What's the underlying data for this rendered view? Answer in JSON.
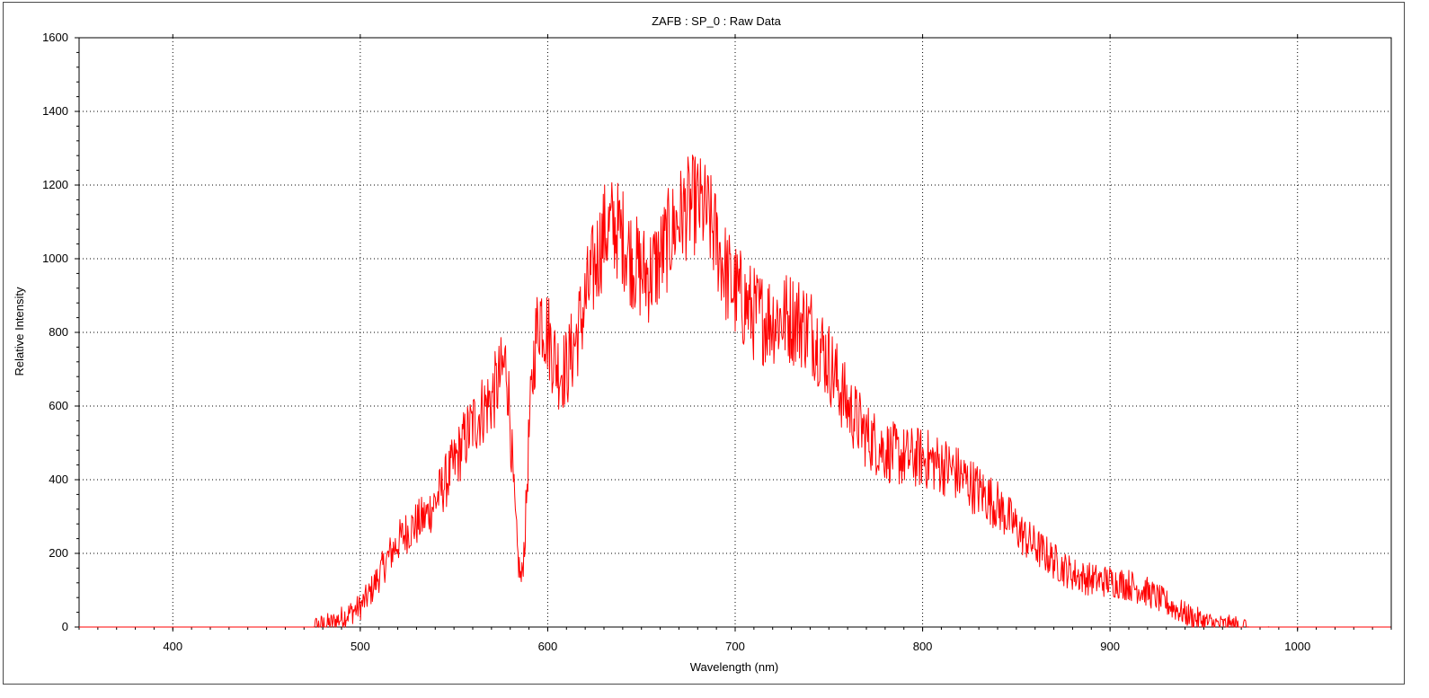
{
  "chart_data": {
    "type": "line",
    "title": "ZAFB : SP_0 : Raw Data",
    "xlabel": "Wavelength (nm)",
    "ylabel": "Relative Intensity",
    "xlim": [
      350,
      1050
    ],
    "ylim": [
      0,
      1600
    ],
    "x_ticks": [
      400,
      500,
      600,
      700,
      800,
      900,
      1000
    ],
    "y_ticks": [
      0,
      200,
      400,
      600,
      800,
      1000,
      1200,
      1400,
      1600
    ],
    "grid": true,
    "grid_style": "dotted",
    "legend": "none",
    "series": [
      {
        "color": "#ff0000",
        "x": [
          350,
          400,
          450,
          475,
          480,
          485,
          490,
          495,
          500,
          505,
          510,
          515,
          520,
          525,
          530,
          535,
          540,
          545,
          550,
          555,
          560,
          565,
          570,
          575,
          578,
          580,
          582,
          584,
          586,
          588,
          590,
          593,
          596,
          600,
          603,
          606,
          610,
          615,
          620,
          625,
          630,
          635,
          640,
          645,
          650,
          655,
          660,
          665,
          670,
          675,
          680,
          685,
          690,
          695,
          700,
          705,
          710,
          715,
          720,
          725,
          730,
          735,
          740,
          745,
          750,
          755,
          760,
          765,
          770,
          775,
          780,
          785,
          790,
          795,
          800,
          805,
          810,
          815,
          820,
          825,
          830,
          835,
          840,
          845,
          850,
          855,
          860,
          865,
          870,
          875,
          880,
          885,
          890,
          895,
          900,
          905,
          910,
          915,
          920,
          925,
          930,
          935,
          940,
          945,
          950,
          955,
          960,
          965,
          970,
          975,
          980,
          985,
          990,
          1000,
          1050
        ],
        "y": [
          0,
          0,
          0,
          0,
          5,
          10,
          25,
          40,
          55,
          90,
          140,
          190,
          230,
          260,
          280,
          300,
          340,
          390,
          440,
          500,
          550,
          590,
          620,
          680,
          720,
          560,
          350,
          190,
          120,
          260,
          520,
          760,
          860,
          800,
          740,
          700,
          700,
          780,
          880,
          980,
          1070,
          1090,
          1060,
          1000,
          960,
          960,
          1000,
          1060,
          1110,
          1140,
          1150,
          1120,
          1050,
          960,
          910,
          880,
          850,
          840,
          840,
          840,
          840,
          830,
          810,
          770,
          720,
          660,
          600,
          560,
          520,
          500,
          480,
          470,
          460,
          460,
          460,
          450,
          440,
          430,
          410,
          390,
          370,
          350,
          330,
          300,
          270,
          240,
          220,
          200,
          180,
          160,
          145,
          135,
          130,
          125,
          125,
          120,
          115,
          105,
          95,
          80,
          65,
          50,
          35,
          25,
          15,
          8,
          4,
          2,
          1,
          0,
          0,
          0,
          0,
          0,
          0
        ]
      }
    ]
  }
}
